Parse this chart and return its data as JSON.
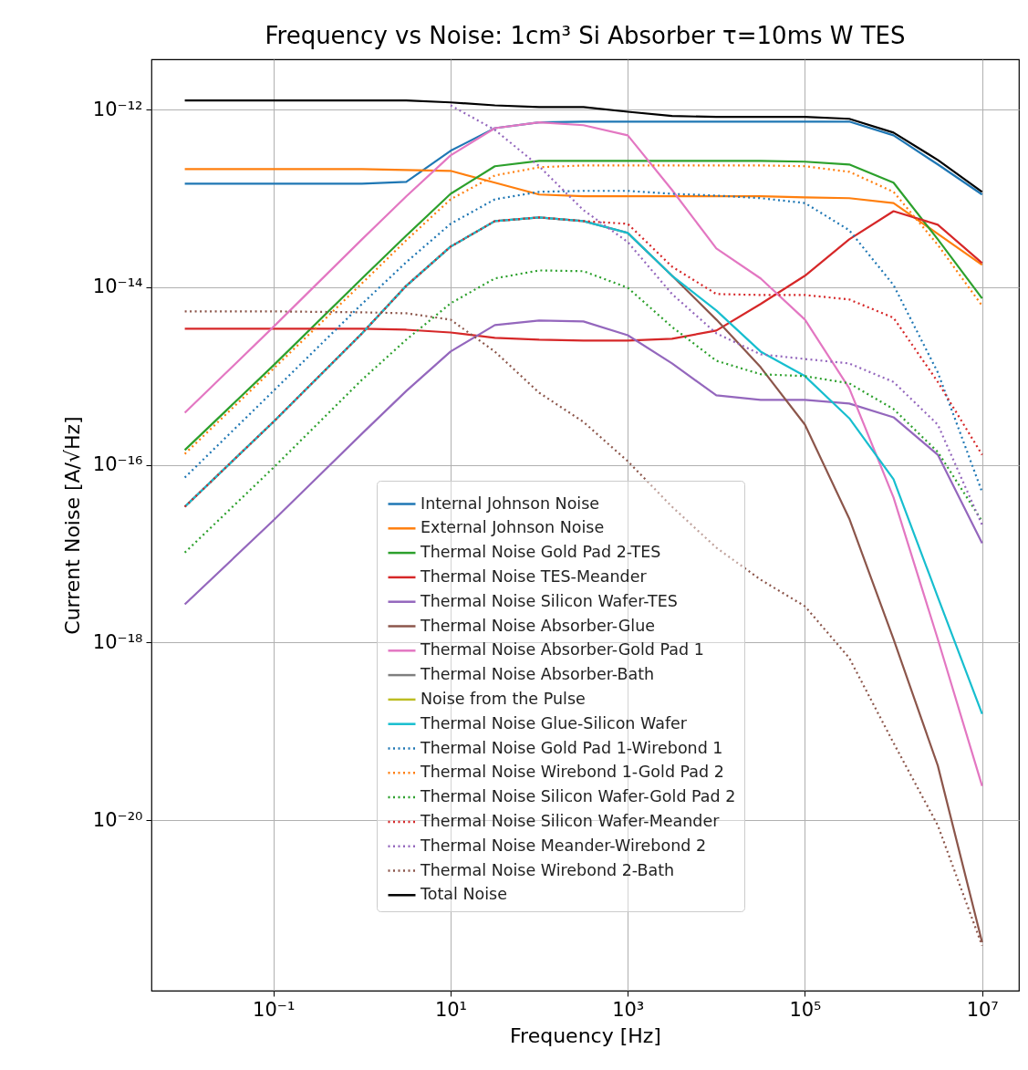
{
  "chart_data": {
    "type": "line",
    "title": "Frequency vs Noise: 1cm³ Si Absorber τ=10ms W TES",
    "xlabel": "Frequency [Hz]",
    "ylabel": "Current Noise [A/√Hz]",
    "log": "xy",
    "grid": true,
    "legend": "bottom",
    "xlim": [
      0.0042,
      26000000.0
    ],
    "ylim": [
      1.2e-22,
      3.7e-12
    ],
    "xticks": [
      {
        "value": 0.1,
        "label": "10⁻¹"
      },
      {
        "value": 10,
        "label": "10¹"
      },
      {
        "value": 1000,
        "label": "10³"
      },
      {
        "value": 100000,
        "label": "10⁵"
      },
      {
        "value": 10000000,
        "label": "10⁷"
      }
    ],
    "yticks": [
      {
        "value": 1e-12,
        "label": "10⁻¹²"
      },
      {
        "value": 1e-14,
        "label": "10⁻¹⁴"
      },
      {
        "value": 1e-16,
        "label": "10⁻¹⁶"
      },
      {
        "value": 1e-18,
        "label": "10⁻¹⁸"
      },
      {
        "value": 1e-20,
        "label": "10⁻²⁰"
      }
    ],
    "x": [
      0.01,
      0.1,
      1,
      3.162,
      10,
      31.62,
      100,
      316.2,
      1000,
      3162,
      10000,
      31623,
      100000,
      316228,
      1000000,
      3162278,
      10000000
    ],
    "series": [
      {
        "name": "Internal Johnson Noise",
        "color": "#1f77b4",
        "line_style": "solid",
        "values": [
          1.47e-13,
          1.47e-13,
          1.47e-13,
          1.54e-13,
          3.45e-13,
          6.2e-13,
          7.2e-13,
          7.35e-13,
          7.35e-13,
          7.35e-13,
          7.35e-13,
          7.35e-13,
          7.35e-13,
          7.35e-13,
          5.15e-13,
          2.42e-13,
          1.11e-13
        ]
      },
      {
        "name": "External Johnson Noise",
        "color": "#ff7f0e",
        "line_style": "solid",
        "values": [
          2.15e-13,
          2.15e-13,
          2.15e-13,
          2.1e-13,
          2.05e-13,
          1.51e-13,
          1.11e-13,
          1.06e-13,
          1.06e-13,
          1.06e-13,
          1.06e-13,
          1.06e-13,
          1.03e-13,
          1.01e-13,
          8.9e-14,
          4e-14,
          1.79e-14
        ]
      },
      {
        "name": "Thermal Noise Gold Pad 2-TES",
        "color": "#2ca02c",
        "line_style": "solid",
        "values": [
          1.47e-16,
          1.32e-15,
          1.26e-14,
          3.82e-14,
          1.13e-13,
          2.31e-13,
          2.66e-13,
          2.66e-13,
          2.66e-13,
          2.66e-13,
          2.66e-13,
          2.66e-13,
          2.6e-13,
          2.42e-13,
          1.51e-13,
          3.47e-14,
          7.5e-15
        ]
      },
      {
        "name": "Thermal Noise TES-Meander",
        "color": "#d62728",
        "line_style": "solid",
        "values": [
          3.41e-15,
          3.41e-15,
          3.41e-15,
          3.33e-15,
          3.1e-15,
          2.7e-15,
          2.57e-15,
          2.51e-15,
          2.51e-15,
          2.63e-15,
          3.26e-15,
          6.5e-15,
          1.35e-14,
          3.47e-14,
          7.2e-14,
          5.07e-14,
          1.88e-14
        ]
      },
      {
        "name": "Thermal Noise Silicon Wafer-TES",
        "color": "#9467bd",
        "line_style": "solid",
        "values": [
          2.69e-18,
          2.37e-17,
          2.25e-16,
          6.8e-16,
          1.89e-15,
          3.76e-15,
          4.23e-15,
          4.13e-15,
          2.89e-15,
          1.39e-15,
          6.07e-16,
          5.4e-16,
          5.4e-16,
          4.91e-16,
          3.44e-16,
          1.3e-16,
          1.31e-17
        ]
      },
      {
        "name": "Thermal Noise Absorber-Glue",
        "color": "#8c564b",
        "line_style": "solid",
        "values": [
          3.38e-17,
          3.05e-16,
          3.03e-15,
          1.04e-14,
          2.87e-14,
          5.57e-14,
          6.12e-14,
          5.57e-14,
          4.1e-14,
          1.35e-14,
          4.33e-15,
          1.26e-15,
          2.84e-16,
          2.49e-17,
          1.09e-18,
          4.1e-20,
          4.2e-22
        ]
      },
      {
        "name": "Thermal Noise Absorber-Gold Pad 1",
        "color": "#e377c2",
        "line_style": "solid",
        "values": [
          3.87e-16,
          3.58e-15,
          3.47e-14,
          1.06e-13,
          3.06e-13,
          6.2e-13,
          7.2e-13,
          6.7e-13,
          5.15e-13,
          1.25e-13,
          2.74e-14,
          1.26e-14,
          4.33e-15,
          7.3e-16,
          4.3e-17,
          1.09e-18,
          2.42e-20
        ]
      },
      {
        "name": "Thermal Noise Absorber-Bath",
        "color": "#7f7f7f",
        "line_style": "solid",
        "values": [
          null,
          null,
          null,
          null,
          null,
          null,
          null,
          null,
          null,
          null,
          null,
          null,
          null,
          null,
          null,
          null,
          null
        ]
      },
      {
        "name": "Noise from the Pulse",
        "color": "#bcbd22",
        "line_style": "solid",
        "values": [
          null,
          null,
          null,
          null,
          null,
          null,
          null,
          null,
          null,
          null,
          null,
          null,
          null,
          null,
          null,
          null,
          null
        ]
      },
      {
        "name": "Thermal Noise Glue-Silicon Wafer",
        "color": "#17becf",
        "line_style": "solid",
        "values": [
          3.38e-17,
          3.05e-16,
          3.03e-15,
          1.04e-14,
          2.87e-14,
          5.57e-14,
          6.12e-14,
          5.57e-14,
          4.1e-14,
          1.35e-14,
          5.48e-15,
          1.89e-15,
          1e-15,
          3.36e-16,
          6.9e-17,
          3.25e-18,
          1.57e-19
        ]
      },
      {
        "name": "Thermal Noise Gold Pad 1-Wirebond 1",
        "color": "#1f77b4",
        "line_style": "dotted",
        "values": [
          7.2e-17,
          6.8e-16,
          6.5e-15,
          1.92e-14,
          5.19e-14,
          9.8e-14,
          1.19e-13,
          1.22e-13,
          1.22e-13,
          1.13e-13,
          1.08e-13,
          1.01e-13,
          8.9e-14,
          4.4e-14,
          1.06e-14,
          1.1e-15,
          4.94e-17
        ]
      },
      {
        "name": "Thermal Noise Wirebond 1-Gold Pad 2",
        "color": "#ff7f0e",
        "line_style": "dotted",
        "values": [
          1.33e-16,
          1.21e-15,
          1.11e-14,
          3.39e-14,
          9.8e-14,
          1.82e-13,
          2.25e-13,
          2.36e-13,
          2.36e-13,
          2.36e-13,
          2.36e-13,
          2.36e-13,
          2.31e-13,
          2e-13,
          1.19e-13,
          3.01e-14,
          6.2e-15
        ]
      },
      {
        "name": "Thermal Noise Silicon Wafer-Gold Pad 2",
        "color": "#2ca02c",
        "line_style": "dotted",
        "values": [
          1.03e-17,
          9.3e-17,
          9.1e-16,
          2.57e-15,
          6.6e-15,
          1.26e-14,
          1.55e-14,
          1.52e-14,
          9.9e-15,
          3.58e-15,
          1.49e-15,
          1.05e-15,
          1e-15,
          8.3e-16,
          4.26e-16,
          1.4e-16,
          2.32e-17
        ]
      },
      {
        "name": "Thermal Noise Silicon Wafer-Meander",
        "color": "#d62728",
        "line_style": "dotted",
        "values": [
          3.38e-17,
          3.05e-16,
          3.03e-15,
          1.04e-14,
          2.87e-14,
          5.57e-14,
          6.12e-14,
          5.57e-14,
          5.19e-14,
          1.71e-14,
          8.4e-15,
          8.2e-15,
          8.2e-15,
          7.3e-15,
          4.54e-15,
          8.6e-16,
          1.3e-16
        ]
      },
      {
        "name": "Thermal Noise Meander-Wirebond 2",
        "color": "#9467bd",
        "line_style": "dotted",
        "values": [
          null,
          null,
          null,
          null,
          1.12e-12,
          5.94e-13,
          2.31e-13,
          7.4e-14,
          3.24e-14,
          8.4e-15,
          3.03e-15,
          1.76e-15,
          1.56e-15,
          1.39e-15,
          8.6e-16,
          2.84e-16,
          2.11e-17
        ]
      },
      {
        "name": "Thermal Noise Wirebond 2-Bath",
        "color": "#8c564b",
        "line_style": "dotted",
        "values": [
          5.36e-15,
          5.36e-15,
          5.23e-15,
          5.1e-15,
          4.33e-15,
          1.89e-15,
          6.5e-16,
          3.05e-16,
          1.1e-16,
          3.38e-17,
          1.17e-17,
          5.1e-18,
          2.56e-18,
          6.7e-19,
          7.4e-20,
          8.7e-21,
          3.85e-22
        ]
      },
      {
        "name": "Total Noise",
        "color": "#000000",
        "line_style": "solid",
        "values": [
          1.27e-12,
          1.27e-12,
          1.27e-12,
          1.27e-12,
          1.21e-12,
          1.12e-12,
          1.07e-12,
          1.07e-12,
          9.5e-13,
          8.5e-13,
          8.3e-13,
          8.3e-13,
          8.3e-13,
          7.9e-13,
          5.53e-13,
          2.72e-13,
          1.19e-13
        ]
      }
    ]
  }
}
